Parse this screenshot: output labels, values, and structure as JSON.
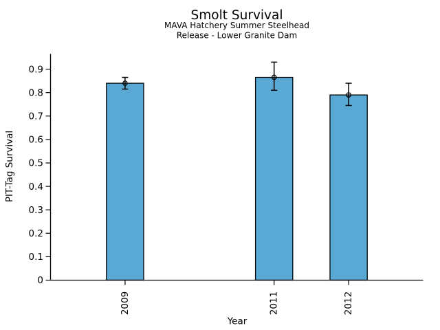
{
  "page": {
    "background": "#FFFFFF"
  },
  "chart_data": {
    "type": "bar",
    "title": "Smolt Survival",
    "subtitle_lines": [
      "MAVA Hatchery Summer Steelhead",
      "Release - Lower Granite Dam"
    ],
    "xlabel": "Year",
    "ylabel": "PIT-Tag Survival",
    "categories": [
      "2009",
      "2011",
      "2012"
    ],
    "x": [
      2009,
      2011,
      2012
    ],
    "values": [
      0.84,
      0.865,
      0.79
    ],
    "error_low": [
      0.815,
      0.81,
      0.745
    ],
    "error_high": [
      0.865,
      0.93,
      0.84
    ],
    "marker": "open-circle",
    "bar_width_years": 0.5,
    "xlim": [
      2008,
      2013
    ],
    "ylim": [
      0,
      0.965
    ],
    "yticks": [
      0,
      0.1,
      0.2,
      0.3,
      0.4,
      0.5,
      0.6,
      0.7,
      0.8,
      0.9
    ],
    "ytick_labels": [
      "0",
      "0.1",
      "0.2",
      "0.3",
      "0.4",
      "0.5",
      "0.6",
      "0.7",
      "0.8",
      "0.9"
    ],
    "xtick_label_rotation_deg": 90,
    "grid": false,
    "legend": null,
    "colors": {
      "bar_fill": "#5AA9D4",
      "bar_edge": "#000000",
      "error": "#000000",
      "marker_edge": "#000000",
      "axis": "#000000",
      "text": "#000000"
    }
  }
}
